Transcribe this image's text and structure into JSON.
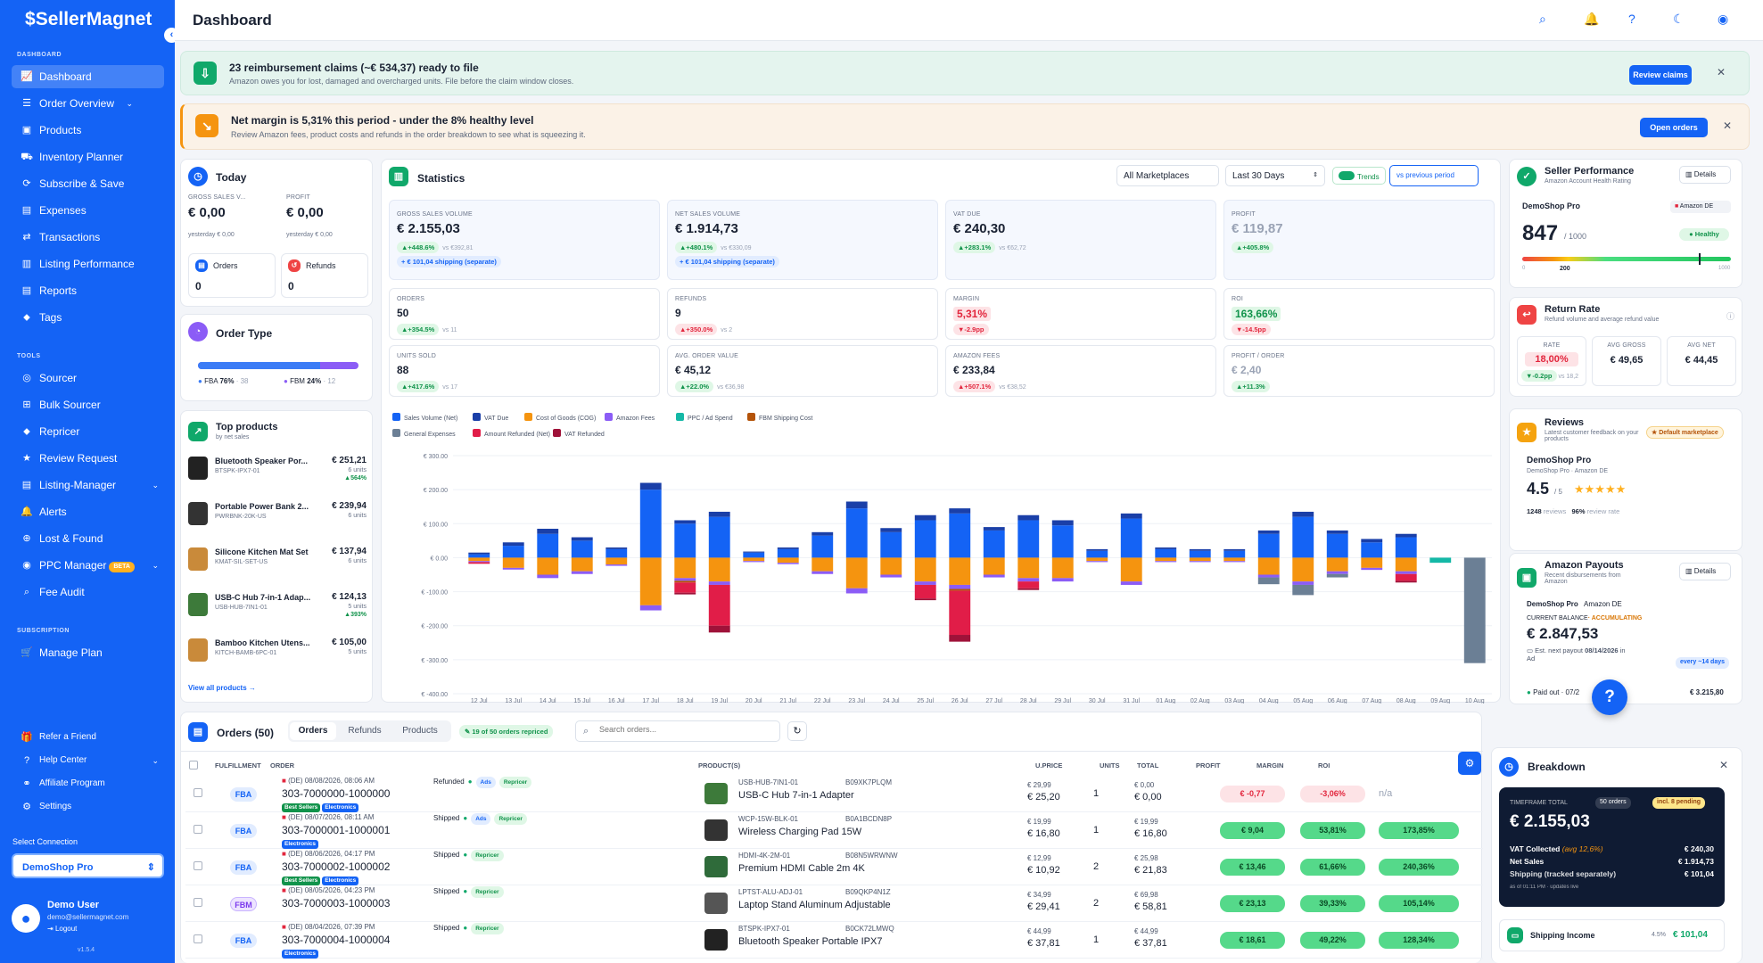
{
  "app": {
    "logo": "SellerMagnet",
    "page_title": "Dashboard"
  },
  "sidebar": {
    "sections": {
      "dashboard": "DASHBOARD",
      "tools": "TOOLS",
      "subscription": "SUBSCRIPTION"
    },
    "items": [
      {
        "label": "Dashboard",
        "icon": "chart-icon"
      },
      {
        "label": "Order Overview",
        "icon": "list-icon"
      },
      {
        "label": "Products",
        "icon": "box-icon"
      },
      {
        "label": "Inventory Planner",
        "icon": "truck-icon"
      },
      {
        "label": "Subscribe & Save",
        "icon": "refresh-icon"
      },
      {
        "label": "Expenses",
        "icon": "file-icon"
      },
      {
        "label": "Transactions",
        "icon": "swap-icon"
      },
      {
        "label": "Listing Performance",
        "icon": "chart-icon"
      },
      {
        "label": "Reports",
        "icon": "doc-icon"
      },
      {
        "label": "Tags",
        "icon": "tag-icon"
      }
    ],
    "tools": [
      {
        "label": "Sourcer"
      },
      {
        "label": "Bulk Sourcer"
      },
      {
        "label": "Repricer"
      },
      {
        "label": "Review Request"
      },
      {
        "label": "Listing-Manager"
      },
      {
        "label": "Alerts"
      },
      {
        "label": "Lost & Found"
      },
      {
        "label": "PPC Manager",
        "badge": "BETA"
      },
      {
        "label": "Fee Audit"
      }
    ],
    "subscription": [
      {
        "label": "Manage Plan"
      }
    ],
    "bottom": [
      {
        "label": "Refer a Friend"
      },
      {
        "label": "Help Center"
      },
      {
        "label": "Affiliate Program"
      },
      {
        "label": "Settings"
      }
    ],
    "select_connection_label": "Select Connection",
    "connection": "DemoShop Pro",
    "user": {
      "name": "Demo User",
      "email": "demo@sellermagnet.com",
      "logout": "Logout",
      "version": "v1.5.4"
    }
  },
  "banners": {
    "reimb": {
      "title": "23 reimbursement claims (~€ 534,37) ready to file",
      "text": "Amazon owes you for lost, damaged and overcharged units. File before the claim window closes.",
      "button": "Review claims"
    },
    "margin": {
      "title": "Net margin is 5,31% this period - under the 8% healthy level",
      "text": "Review Amazon fees, product costs and refunds in the order breakdown to see what is squeezing it.",
      "button": "Open orders"
    }
  },
  "today": {
    "title": "Today",
    "gross_label": "GROSS SALES V...",
    "gross": "€ 0,00",
    "gross_y": "yesterday € 0,00",
    "profit_label": "PROFIT",
    "profit": "€ 0,00",
    "profit_y": "yesterday € 0,00",
    "orders_label": "Orders",
    "orders": "0",
    "refunds_label": "Refunds",
    "refunds": "0"
  },
  "order_type": {
    "title": "Order Type",
    "fba": "FBA",
    "fba_pct": "76%",
    "fba_n": "· 38",
    "fbm": "FBM",
    "fbm_pct": "24%",
    "fbm_n": "· 12",
    "fba_frac": 0.76
  },
  "top_products": {
    "title": "Top products",
    "subtitle": "by net sales",
    "view_all": "View all products →",
    "items": [
      {
        "name": "Bluetooth Speaker Por...",
        "sku": "BTSPK-IPX7-01",
        "value": "€ 251,21",
        "units": "6 units",
        "delta": "▲564%"
      },
      {
        "name": "Portable Power Bank 2...",
        "sku": "PWRBNK-20K-US",
        "value": "€ 239,94",
        "units": "6 units",
        "delta": ""
      },
      {
        "name": "Silicone Kitchen Mat Set",
        "sku": "KMAT-SIL-SET-US",
        "value": "€ 137,94",
        "units": "6 units",
        "delta": ""
      },
      {
        "name": "USB-C Hub 7-in-1 Adap...",
        "sku": "USB-HUB-7IN1-01",
        "value": "€ 124,13",
        "units": "5 units",
        "delta": "▲393%"
      },
      {
        "name": "Bamboo Kitchen Utens...",
        "sku": "KITCH-BAMB-6PC-01",
        "value": "€ 105,00",
        "units": "5 units",
        "delta": ""
      }
    ]
  },
  "statistics": {
    "title": "Statistics",
    "marketplace": "All Marketplaces",
    "range": "Last 30 Days",
    "trends": "Trends",
    "compare": "vs previous period",
    "kpis": [
      {
        "label": "GROSS SALES VOLUME",
        "value": "€ 2.155,03",
        "delta": "▲+448.6%",
        "vs": "vs €392,81",
        "extra": "+ € 101,04 shipping (separate)"
      },
      {
        "label": "NET SALES VOLUME",
        "value": "€ 1.914,73",
        "delta": "▲+480.1%",
        "vs": "vs €330,09",
        "extra": "+ € 101,04 shipping (separate)"
      },
      {
        "label": "VAT DUE",
        "value": "€ 240,30",
        "delta": "▲+283.1%",
        "vs": "vs €62,72",
        "extra": ""
      },
      {
        "label": "PROFIT",
        "value": "€ 119,87",
        "delta": "▲+405.8%",
        "vs": "",
        "extra": ""
      }
    ],
    "metrics": [
      {
        "label": "ORDERS",
        "value": "50",
        "delta": "▲+354.5%",
        "vs": "vs 11",
        "neg": false
      },
      {
        "label": "REFUNDS",
        "value": "9",
        "delta": "▲+350.0%",
        "vs": "vs 2",
        "neg": true
      },
      {
        "label": "MARGIN",
        "value": "5,31%",
        "delta": "▼-2.9pp",
        "vs": "",
        "neg": true
      },
      {
        "label": "ROI",
        "value": "163,66%",
        "delta": "▼-14.5pp",
        "vs": "",
        "neg": true
      },
      {
        "label": "UNITS SOLD",
        "value": "88",
        "delta": "▲+417.6%",
        "vs": "vs 17",
        "neg": false
      },
      {
        "label": "AVG. ORDER VALUE",
        "value": "€ 45,12",
        "delta": "▲+22.0%",
        "vs": "vs €36,98",
        "neg": false
      },
      {
        "label": "AMAZON FEES",
        "value": "€ 233,84",
        "delta": "▲+507.1%",
        "vs": "vs €38,52",
        "neg": true
      },
      {
        "label": "PROFIT / ORDER",
        "value": "€ 2,40",
        "delta": "▲+11.3%",
        "vs": "",
        "neg": false
      }
    ]
  },
  "chart_data": {
    "type": "bar",
    "stacked": true,
    "categories": [
      "12 Jul",
      "13 Jul",
      "14 Jul",
      "15 Jul",
      "16 Jul",
      "17 Jul",
      "18 Jul",
      "19 Jul",
      "20 Jul",
      "21 Jul",
      "22 Jul",
      "23 Jul",
      "24 Jul",
      "25 Jul",
      "26 Jul",
      "27 Jul",
      "28 Jul",
      "29 Jul",
      "30 Jul",
      "31 Jul",
      "01 Aug",
      "02 Aug",
      "03 Aug",
      "04 Aug",
      "05 Aug",
      "06 Aug",
      "07 Aug",
      "08 Aug",
      "09 Aug",
      "10 Aug"
    ],
    "ylim": [
      -400,
      300
    ],
    "yticks": [
      "€ 300.00",
      "€ 200.00",
      "€ 100.00",
      "€ 0.00",
      "€ -100.00",
      "€ -200.00",
      "€ -300.00",
      "€ -400.00"
    ],
    "series": [
      {
        "name": "Sales Volume (Net)",
        "color": "#1463f5",
        "values": [
          10,
          35,
          70,
          50,
          25,
          200,
          100,
          120,
          15,
          25,
          65,
          145,
          75,
          110,
          130,
          80,
          110,
          95,
          20,
          115,
          25,
          20,
          20,
          70,
          120,
          70,
          45,
          60,
          0,
          0
        ]
      },
      {
        "name": "VAT Due",
        "color": "#1a3fa8",
        "values": [
          5,
          10,
          15,
          10,
          5,
          20,
          10,
          15,
          3,
          5,
          10,
          20,
          12,
          15,
          15,
          10,
          15,
          15,
          5,
          15,
          5,
          5,
          5,
          10,
          15,
          10,
          10,
          10,
          0,
          0
        ]
      },
      {
        "name": "Cost of Goods (COG)",
        "color": "#f5940f",
        "values": [
          -10,
          -30,
          -50,
          -40,
          -20,
          -140,
          -60,
          -70,
          -10,
          -15,
          -40,
          -90,
          -50,
          -70,
          -80,
          -50,
          -60,
          -60,
          -10,
          -70,
          -10,
          -10,
          -10,
          -50,
          -70,
          -40,
          -30,
          -40,
          0,
          0
        ]
      },
      {
        "name": "Amazon Fees",
        "color": "#8b5cf6",
        "values": [
          -3,
          -5,
          -10,
          -8,
          -4,
          -15,
          -8,
          -10,
          -3,
          -4,
          -8,
          -15,
          -8,
          -10,
          -12,
          -8,
          -10,
          -10,
          -3,
          -10,
          -3,
          -3,
          -3,
          -8,
          -10,
          -8,
          -6,
          -8,
          0,
          0
        ]
      },
      {
        "name": "PPC / Ad Spend",
        "color": "#14b8a6",
        "values": [
          0,
          0,
          0,
          0,
          0,
          0,
          0,
          0,
          0,
          0,
          0,
          0,
          0,
          0,
          0,
          0,
          0,
          0,
          0,
          0,
          0,
          0,
          0,
          0,
          0,
          0,
          0,
          0,
          -15,
          0
        ]
      },
      {
        "name": "FBM Shipping Cost",
        "color": "#b45309",
        "values": [
          0,
          0,
          0,
          0,
          0,
          0,
          -5,
          0,
          0,
          0,
          0,
          0,
          0,
          0,
          -5,
          0,
          0,
          0,
          0,
          0,
          0,
          0,
          0,
          0,
          0,
          0,
          0,
          0,
          0,
          0
        ]
      },
      {
        "name": "General Expenses",
        "color": "#6b7f95",
        "values": [
          0,
          0,
          0,
          0,
          0,
          0,
          0,
          0,
          0,
          0,
          0,
          0,
          0,
          0,
          0,
          0,
          0,
          0,
          0,
          0,
          0,
          0,
          0,
          -20,
          -30,
          -10,
          0,
          0,
          0,
          -310
        ]
      },
      {
        "name": "Amount Refunded (Net)",
        "color": "#e11d48",
        "values": [
          -5,
          0,
          0,
          0,
          0,
          0,
          -30,
          -120,
          0,
          0,
          0,
          0,
          0,
          -40,
          -130,
          0,
          -20,
          0,
          0,
          0,
          0,
          0,
          0,
          0,
          0,
          0,
          0,
          -20,
          0,
          0
        ]
      },
      {
        "name": "VAT Refunded",
        "color": "#9f1239",
        "values": [
          0,
          0,
          0,
          0,
          0,
          0,
          -5,
          -20,
          0,
          0,
          0,
          0,
          0,
          -5,
          -20,
          0,
          -5,
          0,
          0,
          0,
          0,
          0,
          0,
          0,
          0,
          0,
          0,
          -5,
          0,
          0
        ]
      }
    ]
  },
  "seller_performance": {
    "title": "Seller Performance",
    "subtitle": "Amazon Account Health Rating",
    "details": "Details",
    "shop": "DemoShop Pro",
    "marketplace": "Amazon DE",
    "score": "847",
    "max": "/ 1000",
    "status": "Healthy",
    "tick_low": "0",
    "tick_mid": "200",
    "tick_high": "1000",
    "fraction": 0.847
  },
  "return_rate": {
    "title": "Return Rate",
    "subtitle": "Refund volume and average refund value",
    "rate_label": "RATE",
    "rate": "18,00%",
    "rate_delta": "▼-0.2pp",
    "rate_vs": "vs 18,2",
    "gross_label": "AVG GROSS",
    "gross": "€ 49,65",
    "net_label": "AVG NET",
    "net": "€ 44,45"
  },
  "reviews": {
    "title": "Reviews",
    "subtitle": "Latest customer feedback on your products",
    "badge": "Default marketplace",
    "shop": "DemoShop Pro",
    "shop_sub": "DemoShop Pro · Amazon DE",
    "rating": "4.5",
    "of": "/ 5",
    "stars": "★★★★★",
    "count": "1248",
    "count_label": "reviews",
    "rate": "96%",
    "rate_label": "review rate"
  },
  "payouts": {
    "title": "Amazon Payouts",
    "subtitle": "Recent disbursements from Amazon",
    "details": "Details",
    "shop": "DemoShop Pro",
    "mp": "Amazon DE",
    "balance_label": "CURRENT BALANCE",
    "accum": "· ACCUMULATING",
    "balance": "€ 2.847,53",
    "next_label": "Est. next payout",
    "next_date": "08/14/2026",
    "next_sfx": "in Ad",
    "every": "every ~14 days",
    "paid_label": "Paid out · 07/2",
    "paid": "€ 3.215,80"
  },
  "orders": {
    "title": "Orders (50)",
    "tabs": [
      "Orders",
      "Refunds",
      "Products"
    ],
    "repriced": "19 of 50 orders repriced",
    "search_placeholder": "Search orders...",
    "columns": [
      "FULFILLMENT",
      "ORDER",
      "PRODUCT(S)",
      "U.PRICE",
      "UNITS",
      "TOTAL",
      "PROFIT",
      "MARGIN",
      "ROI"
    ],
    "rows": [
      {
        "ff": "FBA",
        "meta": "(DE) 08/08/2026, 08:06 AM",
        "status": "Refunded",
        "id": "303-7000000-1000000",
        "sku": "USB-HUB-7IN1-01",
        "asin": "B09XK7PLQM",
        "name": "USB-C Hub 7-in-1 Adapter",
        "up1": "€ 29,99",
        "up2": "€ 25,20",
        "units": "1",
        "t1": "€ 0,00",
        "t2": "€ 0,00",
        "profit": "€ -0,77",
        "margin": "-3,06%",
        "roi": "n/a",
        "neg": true,
        "tags": [
          "Best Sellers",
          "Electronics"
        ],
        "badges": [
          "Ads",
          "Repricer"
        ]
      },
      {
        "ff": "FBA",
        "meta": "(DE) 08/07/2026, 08:11 AM",
        "status": "Shipped",
        "id": "303-7000001-1000001",
        "sku": "WCP-15W-BLK-01",
        "asin": "B0A1BCDN8P",
        "name": "Wireless Charging Pad 15W",
        "up1": "€ 19,99",
        "up2": "€ 16,80",
        "units": "1",
        "t1": "€ 19,99",
        "t2": "€ 16,80",
        "profit": "€ 9,04",
        "margin": "53,81%",
        "roi": "173,85%",
        "neg": false,
        "tags": [
          "Electronics"
        ],
        "badges": [
          "Ads",
          "Repricer"
        ]
      },
      {
        "ff": "FBA",
        "meta": "(DE) 08/06/2026, 04:17 PM",
        "status": "Shipped",
        "id": "303-7000002-1000002",
        "sku": "HDMI-4K-2M-01",
        "asin": "B08N5WRWNW",
        "name": "Premium HDMI Cable 2m 4K",
        "up1": "€ 12,99",
        "up2": "€ 10,92",
        "units": "2",
        "t1": "€ 25,98",
        "t2": "€ 21,83",
        "profit": "€ 13,46",
        "margin": "61,66%",
        "roi": "240,36%",
        "neg": false,
        "tags": [
          "Best Sellers",
          "Electronics"
        ],
        "badges": [
          "Repricer"
        ]
      },
      {
        "ff": "FBM",
        "meta": "(DE) 08/05/2026, 04:23 PM",
        "status": "Shipped",
        "id": "303-7000003-1000003",
        "sku": "LPTST-ALU-ADJ-01",
        "asin": "B09QKP4N1Z",
        "name": "Laptop Stand Aluminum Adjustable",
        "up1": "€ 34,99",
        "up2": "€ 29,41",
        "units": "2",
        "t1": "€ 69,98",
        "t2": "€ 58,81",
        "profit": "€ 23,13",
        "margin": "39,33%",
        "roi": "105,14%",
        "neg": false,
        "tags": [],
        "badges": [
          "Repricer"
        ]
      },
      {
        "ff": "FBA",
        "meta": "(DE) 08/04/2026, 07:39 PM",
        "status": "Shipped",
        "id": "303-7000004-1000004",
        "sku": "BTSPK-IPX7-01",
        "asin": "B0CK72LMWQ",
        "name": "Bluetooth Speaker Portable IPX7",
        "up1": "€ 44,99",
        "up2": "€ 37,81",
        "units": "1",
        "t1": "€ 44,99",
        "t2": "€ 37,81",
        "profit": "€ 18,61",
        "margin": "49,22%",
        "roi": "128,34%",
        "neg": false,
        "tags": [
          "Electronics"
        ],
        "badges": [
          "Repricer"
        ]
      }
    ]
  },
  "breakdown": {
    "title": "Breakdown",
    "tf_label": "TIMEFRAME TOTAL",
    "orders": "50 orders",
    "pending": "incl. 8 pending",
    "total": "€ 2.155,03",
    "vat_label": "VAT Collected",
    "vat_avg": "(avg 12,6%)",
    "vat": "€ 240,30",
    "net_label": "Net Sales",
    "net": "€ 1.914,73",
    "ship_label": "Shipping (tracked separately)",
    "ship": "€ 101,04",
    "asof": "as of 01:11 PM · updates live",
    "ship_income": "Shipping Income",
    "si_pct": "4.5%",
    "si_val": "€ 101,04"
  }
}
